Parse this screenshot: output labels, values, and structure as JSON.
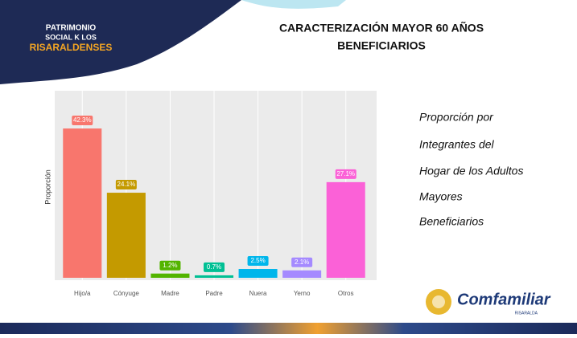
{
  "slide": {
    "logo_lines": [
      "PATRIMONIO",
      "SOCIAL K LOS",
      "RISARALDENSES"
    ],
    "title_lines": [
      "CARACTERIZACIÓN MAYOR 60 AÑOS",
      "BENEFICIARIOS"
    ],
    "side_lines": [
      "Proporción por",
      "Integrantes del",
      "Hogar de los Adultos",
      "Mayores",
      "Beneficiarios"
    ],
    "brand": "Comfamiliar",
    "brand_sub": "RISARALDA"
  },
  "chart_data": {
    "type": "bar",
    "y_label": "Proporción",
    "categories": [
      "Hijo/a",
      "Cónyuge",
      "Madre",
      "Padre",
      "Nuera",
      "Yerno",
      "Otros"
    ],
    "values": [
      42.3,
      24.1,
      1.2,
      0.7,
      2.5,
      2.1,
      27.1
    ],
    "value_labels": [
      "42.3%",
      "24.1%",
      "1.2%",
      "0.7%",
      "2.5%",
      "2.1%",
      "27.1%"
    ],
    "colors": [
      "#F8766D",
      "#C49A00",
      "#53B400",
      "#00C094",
      "#00B6EB",
      "#A58AFF",
      "#FB61D7"
    ],
    "ylim": [
      0,
      53
    ],
    "grid": true
  }
}
